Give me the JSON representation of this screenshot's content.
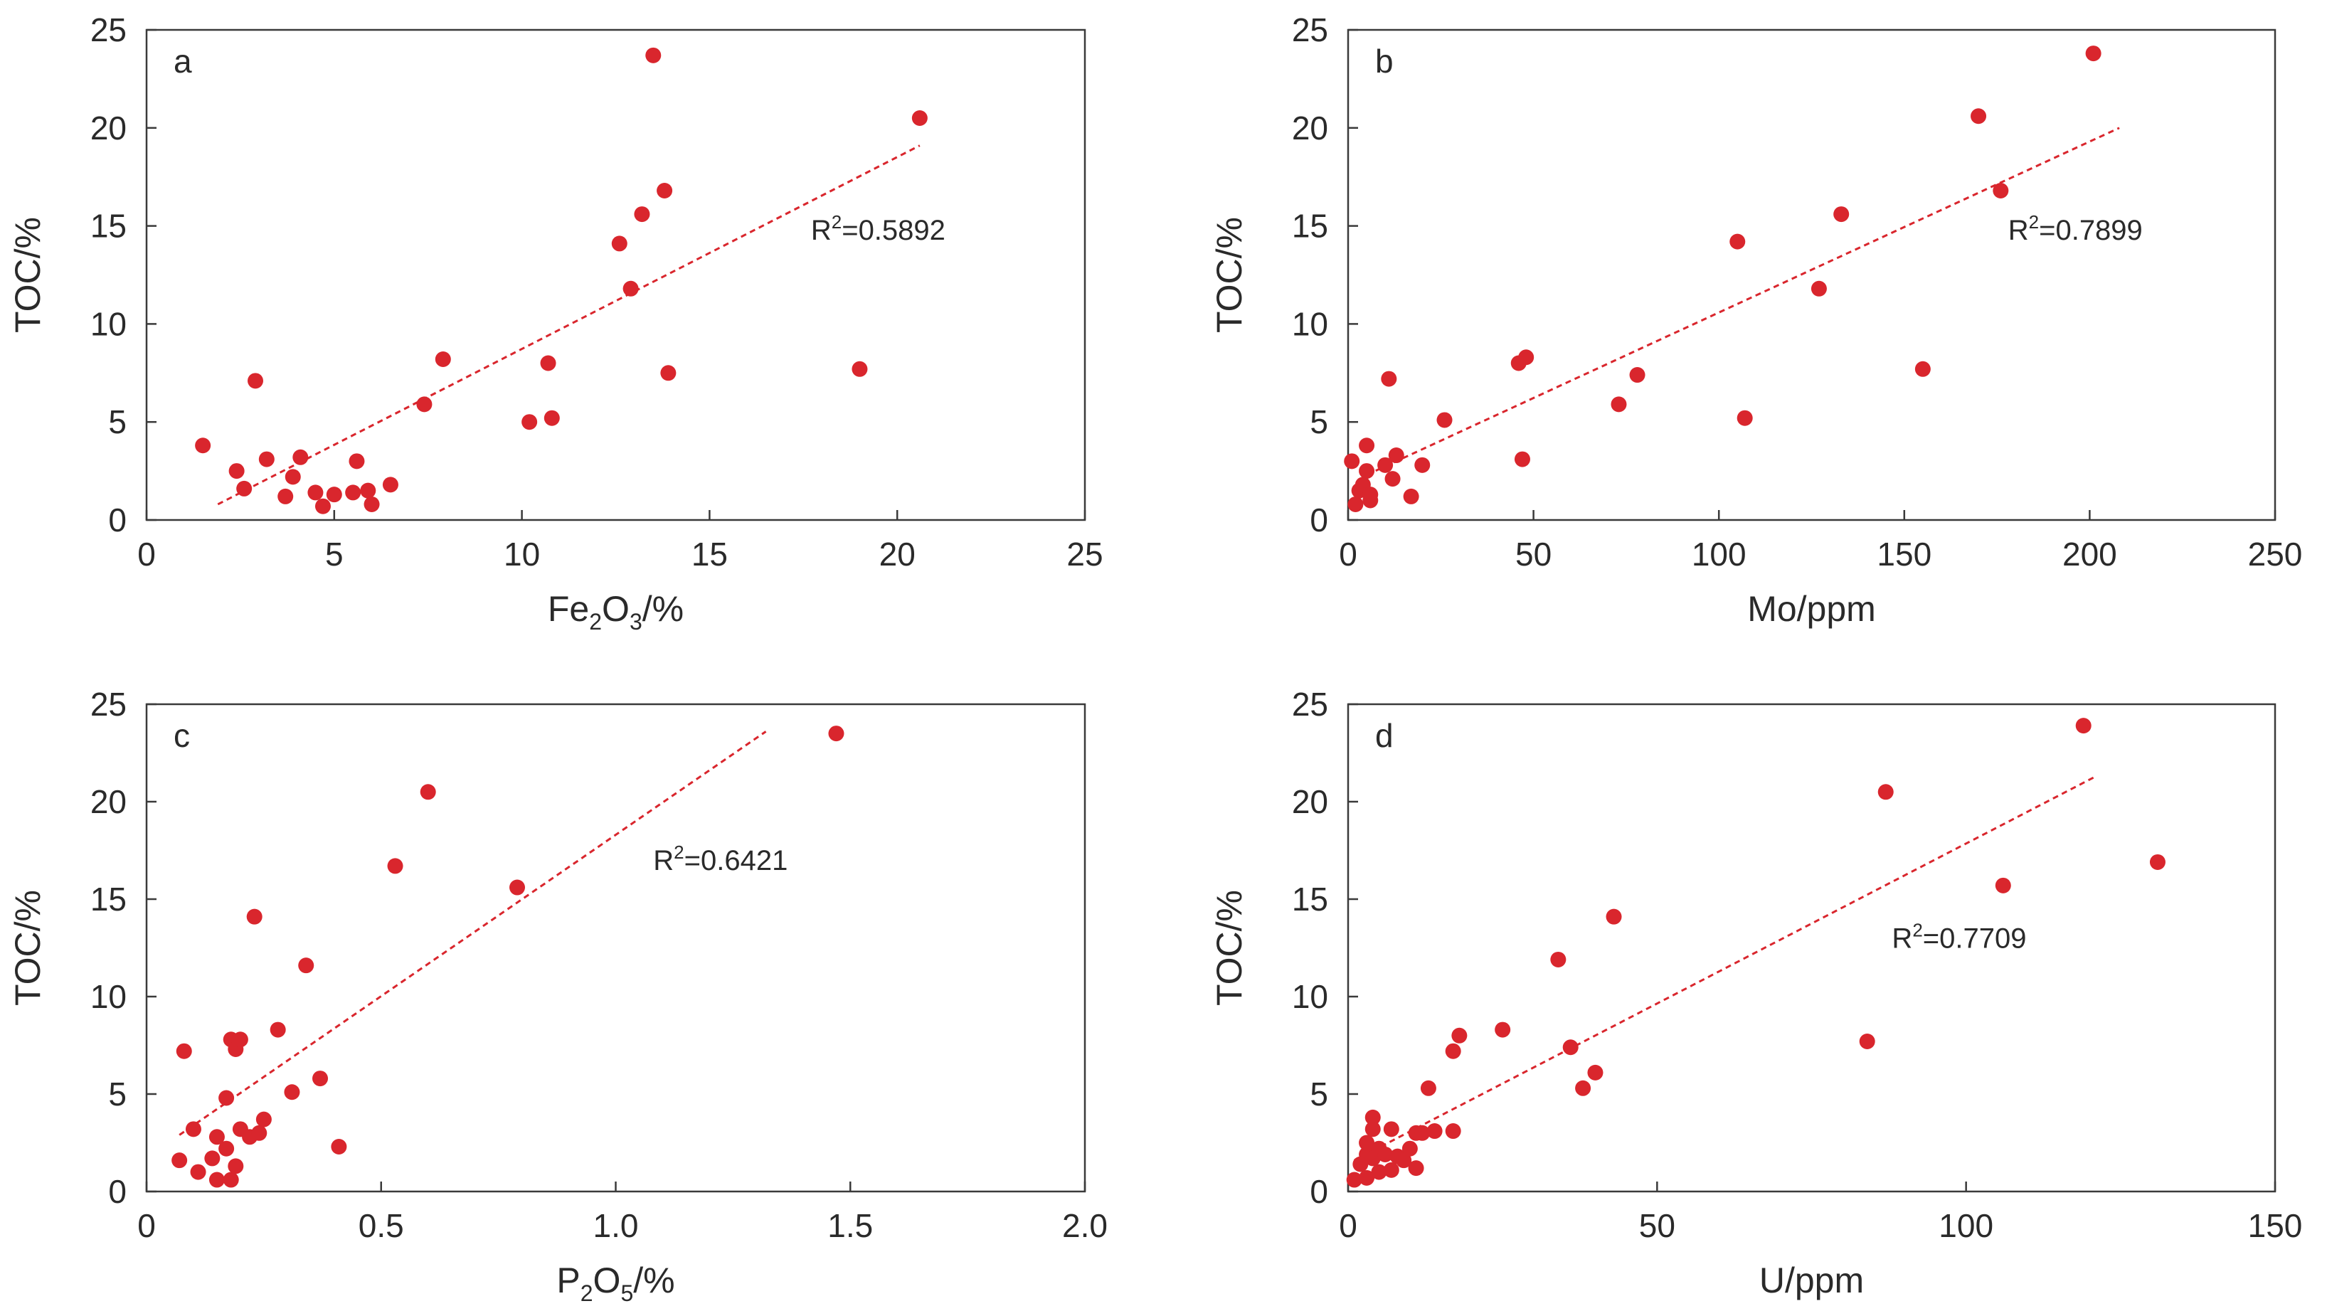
{
  "chart_data": [
    {
      "type": "scatter",
      "panel": "a",
      "xlabel": "Fe2O3/%",
      "xlabel_parts": {
        "pre": "Fe",
        "sub1": "2",
        "mid": "O",
        "sub2": "3",
        "post": "/%"
      },
      "ylabel": "TOC/%",
      "xlim": [
        0,
        25
      ],
      "ylim": [
        0,
        25
      ],
      "xticks": [
        0,
        5,
        10,
        15,
        20,
        25
      ],
      "yticks": [
        0,
        5,
        10,
        15,
        20,
        25
      ],
      "xtick_labels": [
        "0",
        "5",
        "10",
        "15",
        "20",
        "25"
      ],
      "ytick_labels": [
        "0",
        "5",
        "10",
        "15",
        "20",
        "25"
      ],
      "r2_prefix": "R",
      "r2_sup": "2",
      "r2_value": "=0.5892",
      "r2_anchor": [
        17.7,
        14.3
      ],
      "trendline": {
        "x": [
          1.9,
          20.6
        ],
        "y": [
          0.8,
          19.1
        ]
      },
      "points": {
        "x": [
          1.5,
          2.4,
          2.6,
          2.9,
          3.2,
          3.7,
          3.9,
          4.1,
          4.5,
          4.7,
          5.0,
          5.5,
          5.6,
          5.9,
          6.0,
          6.5,
          7.4,
          7.9,
          10.2,
          10.7,
          10.8,
          12.6,
          12.9,
          13.2,
          13.5,
          13.8,
          13.9,
          19.0,
          20.6
        ],
        "y": [
          3.8,
          2.5,
          1.6,
          7.1,
          3.1,
          1.2,
          2.2,
          3.2,
          1.4,
          0.7,
          1.3,
          1.4,
          3.0,
          1.5,
          0.8,
          1.8,
          5.9,
          8.2,
          5.0,
          8.0,
          5.2,
          14.1,
          11.8,
          15.6,
          23.7,
          16.8,
          7.5,
          7.7,
          20.5
        ]
      }
    },
    {
      "type": "scatter",
      "panel": "b",
      "xlabel": "Mo/ppm",
      "ylabel": "TOC/%",
      "xlim": [
        0,
        250
      ],
      "ylim": [
        0,
        25
      ],
      "xticks": [
        0,
        50,
        100,
        150,
        200,
        250
      ],
      "yticks": [
        0,
        5,
        10,
        15,
        20,
        25
      ],
      "xtick_labels": [
        "0",
        "50",
        "100",
        "150",
        "200",
        "250"
      ],
      "ytick_labels": [
        "0",
        "5",
        "10",
        "15",
        "20",
        "25"
      ],
      "r2_prefix": "R",
      "r2_sup": "2",
      "r2_value": "=0.7899",
      "r2_anchor": [
        178,
        14.3
      ],
      "trendline": {
        "x": [
          5,
          208
        ],
        "y": [
          2.3,
          20.0
        ]
      },
      "points": {
        "x": [
          1,
          2,
          3,
          4,
          5,
          5,
          6,
          6,
          10,
          11,
          12,
          13,
          17,
          20,
          26,
          46,
          47,
          48,
          73,
          78,
          105,
          107,
          127,
          133,
          155,
          170,
          176,
          201
        ],
        "y": [
          3.0,
          0.8,
          1.5,
          1.8,
          2.5,
          3.8,
          1.0,
          1.3,
          2.8,
          7.2,
          2.1,
          3.3,
          1.2,
          2.8,
          5.1,
          8.0,
          3.1,
          8.3,
          5.9,
          7.4,
          14.2,
          5.2,
          11.8,
          15.6,
          7.7,
          20.6,
          16.8,
          23.8
        ]
      }
    },
    {
      "type": "scatter",
      "panel": "c",
      "xlabel": "P2O5/%",
      "xlabel_parts": {
        "pre": "P",
        "sub1": "2",
        "mid": "O",
        "sub2": "5",
        "post": "/%"
      },
      "ylabel": "TOC/%",
      "xlim": [
        0,
        2.0
      ],
      "ylim": [
        0,
        25
      ],
      "xticks": [
        0,
        0.5,
        1.0,
        1.5,
        2.0
      ],
      "yticks": [
        0,
        5,
        10,
        15,
        20,
        25
      ],
      "xtick_labels": [
        "0",
        "0.5",
        "1.0",
        "1.5",
        "2.0"
      ],
      "ytick_labels": [
        "0",
        "5",
        "10",
        "15",
        "20",
        "25"
      ],
      "r2_prefix": "R",
      "r2_sup": "2",
      "r2_value": "=0.6421",
      "r2_anchor": [
        1.08,
        16.5
      ],
      "trendline": {
        "x": [
          0.07,
          1.32
        ],
        "y": [
          2.9,
          23.6
        ]
      },
      "points": {
        "x": [
          0.07,
          0.08,
          0.1,
          0.11,
          0.14,
          0.15,
          0.15,
          0.17,
          0.17,
          0.18,
          0.18,
          0.19,
          0.19,
          0.2,
          0.2,
          0.22,
          0.23,
          0.25,
          0.28,
          0.31,
          0.34,
          0.37,
          0.41,
          0.53,
          0.6,
          0.79,
          1.47,
          0.24
        ],
        "y": [
          1.6,
          7.2,
          3.2,
          1.0,
          1.7,
          0.6,
          2.8,
          4.8,
          2.2,
          7.8,
          0.6,
          1.3,
          7.3,
          7.8,
          3.2,
          2.8,
          14.1,
          3.7,
          8.3,
          5.1,
          11.6,
          5.8,
          2.3,
          16.7,
          20.5,
          15.6,
          23.5,
          3.0
        ]
      }
    },
    {
      "type": "scatter",
      "panel": "d",
      "xlabel": "U/ppm",
      "ylabel": "TOC/%",
      "xlim": [
        0,
        150
      ],
      "ylim": [
        0,
        25
      ],
      "xticks": [
        0,
        50,
        100,
        150
      ],
      "yticks": [
        0,
        5,
        10,
        15,
        20,
        25
      ],
      "xtick_labels": [
        "0",
        "50",
        "100",
        "150"
      ],
      "ytick_labels": [
        "0",
        "5",
        "10",
        "15",
        "20",
        "25"
      ],
      "r2_prefix": "R",
      "r2_sup": "2",
      "r2_value": "=0.7709",
      "r2_anchor": [
        88,
        12.5
      ],
      "trendline": {
        "x": [
          1,
          121
        ],
        "y": [
          1.6,
          21.3
        ]
      },
      "points": {
        "x": [
          1,
          2,
          3,
          3,
          3,
          4,
          4,
          4,
          5,
          5,
          6,
          7,
          7,
          8,
          9,
          10,
          11,
          11,
          12,
          13,
          14,
          17,
          17,
          18,
          25,
          34,
          36,
          38,
          40,
          43,
          84,
          87,
          106,
          119,
          131
        ],
        "y": [
          0.6,
          1.4,
          1.9,
          2.5,
          0.7,
          3.2,
          3.8,
          1.7,
          1.0,
          2.2,
          1.9,
          3.2,
          1.1,
          1.8,
          1.6,
          2.2,
          3.0,
          1.2,
          3.0,
          5.3,
          3.1,
          7.2,
          3.1,
          8.0,
          8.3,
          11.9,
          7.4,
          5.3,
          6.1,
          14.1,
          7.7,
          20.5,
          15.7,
          23.9,
          16.9
        ]
      }
    }
  ]
}
